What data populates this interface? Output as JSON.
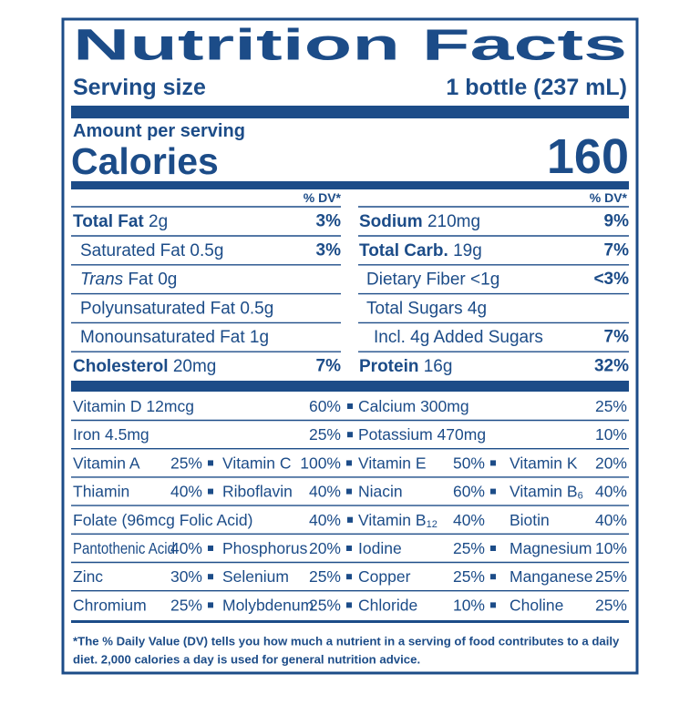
{
  "header": {
    "title": "Nutrition Facts",
    "serving_label": "Serving size",
    "serving_value": "1 bottle (237 mL)"
  },
  "calories": {
    "amount_label": "Amount per serving",
    "label": "Calories",
    "value": "160"
  },
  "dv_header": "% DV*",
  "left_rows": [
    {
      "name": "Total Fat",
      "amount": "2g",
      "dv": "3%"
    },
    {
      "name": "Saturated Fat",
      "amount": "0.5g",
      "dv": "3%"
    },
    {
      "prefix": "Trans",
      "name": "Fat",
      "amount": "0g"
    },
    {
      "name": "Polyunsaturated Fat",
      "amount": "0.5g"
    },
    {
      "name": "Monounsaturated Fat",
      "amount": "1g"
    },
    {
      "name": "Cholesterol",
      "amount": "20mg",
      "dv": "7%"
    }
  ],
  "right_rows": [
    {
      "name": "Sodium",
      "amount": "210mg",
      "dv": "9%"
    },
    {
      "name": "Total Carb.",
      "amount": "19g",
      "dv": "7%"
    },
    {
      "name": "Dietary Fiber",
      "amount": "<1g",
      "dv": "<3%"
    },
    {
      "name": "Total Sugars",
      "amount": "4g"
    },
    {
      "name": "Incl. 4g Added Sugars",
      "dv": "7%"
    },
    {
      "name": "Protein",
      "amount": "16g",
      "dv": "32%"
    }
  ],
  "vitamin_rows": [
    [
      {
        "name": "Vitamin D 12mcg",
        "dv": "60%"
      },
      {
        "name": "Calcium 300mg",
        "dv": "25%"
      }
    ],
    [
      {
        "name": "Iron 4.5mg",
        "dv": "25%"
      },
      {
        "name": "Potassium 470mg",
        "dv": "10%"
      }
    ],
    [
      {
        "name": "Vitamin A",
        "dv": "25%"
      },
      {
        "name": "Vitamin C",
        "dv": "100%"
      },
      {
        "name": "Vitamin E",
        "dv": "50%"
      },
      {
        "name": "Vitamin K",
        "dv": "20%"
      }
    ],
    [
      {
        "name": "Thiamin",
        "dv": "40%"
      },
      {
        "name": "Riboflavin",
        "dv": "40%"
      },
      {
        "name": "Niacin",
        "dv": "60%"
      },
      {
        "name": "Vitamin B",
        "sub": "6",
        "dv": "40%"
      }
    ],
    [
      {
        "name": "Folate (96mcg Folic Acid)",
        "dv": "40%"
      },
      {
        "name": "Vitamin B",
        "sub": "12",
        "dv": "40%"
      },
      {
        "name": "Biotin",
        "dv": "40%"
      }
    ],
    [
      {
        "name": "Pantothenic Acid",
        "dv": "40%"
      },
      {
        "name": "Phosphorus",
        "dv": "20%"
      },
      {
        "name": "Iodine",
        "dv": "25%"
      },
      {
        "name": "Magnesium",
        "dv": "10%"
      }
    ],
    [
      {
        "name": "Zinc",
        "dv": "30%"
      },
      {
        "name": "Selenium",
        "dv": "25%"
      },
      {
        "name": "Copper",
        "dv": "25%"
      },
      {
        "name": "Manganese",
        "dv": "25%"
      }
    ],
    [
      {
        "name": "Chromium",
        "dv": "25%"
      },
      {
        "name": "Molybdenum",
        "dv": "25%"
      },
      {
        "name": "Chloride",
        "dv": "10%"
      },
      {
        "name": "Choline",
        "dv": "25%"
      }
    ]
  ],
  "footnote": [
    "*The % Daily Value (DV) tells you how much a nutrient in a serving of food contributes to a daily",
    "diet. 2,000 calories a day is used for general nutrition advice."
  ]
}
